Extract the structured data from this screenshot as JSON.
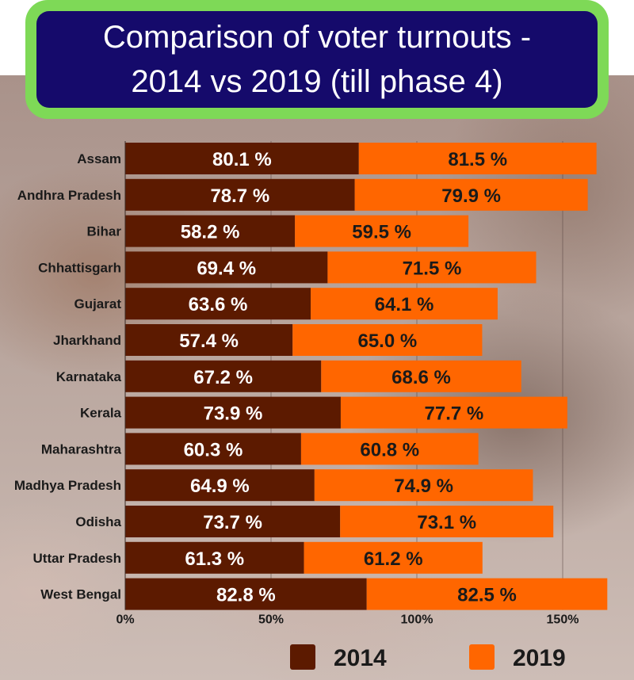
{
  "title_lines": [
    "Comparison of voter turnouts -",
    "2014 vs 2019 (till phase 4)"
  ],
  "chart_data": {
    "type": "bar",
    "orientation": "horizontal",
    "stacked": true,
    "title": "Comparison of voter turnouts - 2014 vs 2019 (till phase 4)",
    "categories": [
      "Assam",
      "Andhra Pradesh",
      "Bihar",
      "Chhattisgarh",
      "Gujarat",
      "Jharkhand",
      "Karnataka",
      "Kerala",
      "Maharashtra",
      "Madhya Pradesh",
      "Odisha",
      "Uttar Pradesh",
      "West Bengal"
    ],
    "series": [
      {
        "name": "2014",
        "color": "#5c1a00",
        "label_color": "#ffffff",
        "values": [
          80.1,
          78.7,
          58.2,
          69.4,
          63.6,
          57.4,
          67.2,
          73.9,
          60.3,
          64.9,
          73.7,
          61.3,
          82.8
        ],
        "labels": [
          "80.1 %",
          "78.7 %",
          "58.2 %",
          "69.4 %",
          "63.6 %",
          "57.4 %",
          "67.2 %",
          "73.9 %",
          "60.3 %",
          "64.9 %",
          "73.7 %",
          "61.3 %",
          "82.8 %"
        ]
      },
      {
        "name": "2019",
        "color": "#ff6600",
        "label_color": "#1a1a1a",
        "values": [
          81.5,
          79.9,
          59.5,
          71.5,
          64.1,
          65.0,
          68.6,
          77.7,
          60.8,
          74.9,
          73.1,
          61.2,
          82.5
        ],
        "labels": [
          "81.5 %",
          "79.9 %",
          "59.5 %",
          "71.5 %",
          "64.1 %",
          "65.0 %",
          "68.6 %",
          "77.7 %",
          "60.8 %",
          "74.9 %",
          "73.1 %",
          "61.2 %",
          "82.5 %"
        ]
      }
    ],
    "xticks": [
      0,
      50,
      100,
      150
    ],
    "xtick_labels": [
      "0%",
      "50%",
      "100%",
      "150%"
    ],
    "xlim": [
      0,
      166
    ],
    "grid": "vertical",
    "legend_position": "bottom"
  }
}
